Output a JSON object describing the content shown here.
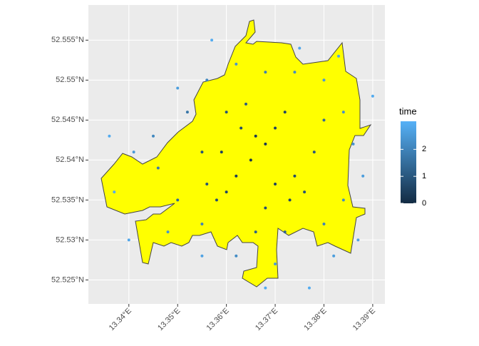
{
  "chart_data": {
    "type": "scatter",
    "x": [
      13.365,
      13.362,
      13.368,
      13.37,
      13.372,
      13.36,
      13.358,
      13.356,
      13.366,
      13.374,
      13.376,
      13.363,
      13.36,
      13.355,
      13.37,
      13.368,
      13.366,
      13.372,
      13.378,
      13.38,
      13.35,
      13.346,
      13.345,
      13.352,
      13.356,
      13.362,
      13.368,
      13.374,
      13.38,
      13.384,
      13.386,
      13.384,
      13.38,
      13.387,
      13.382,
      13.37,
      13.368,
      13.362,
      13.355,
      13.348,
      13.34,
      13.337,
      13.341,
      13.336,
      13.35,
      13.357,
      13.375,
      13.383,
      13.39,
      13.388,
      13.355,
      13.377,
      13.373,
      13.359,
      13.364
    ],
    "y": [
      52.54,
      52.538,
      52.542,
      52.544,
      52.546,
      52.536,
      52.535,
      52.537,
      52.543,
      52.538,
      52.536,
      52.544,
      52.546,
      52.541,
      52.537,
      52.534,
      52.531,
      52.531,
      52.541,
      52.545,
      52.535,
      52.539,
      52.543,
      52.546,
      52.55,
      52.552,
      52.551,
      52.551,
      52.55,
      52.546,
      52.542,
      52.535,
      52.532,
      52.53,
      52.528,
      52.527,
      52.524,
      52.528,
      52.532,
      52.531,
      52.53,
      52.536,
      52.541,
      52.543,
      52.549,
      52.555,
      52.554,
      52.553,
      52.548,
      52.538,
      52.528,
      52.524,
      52.535,
      52.541,
      52.547
    ],
    "series": [
      {
        "name": "time",
        "values": [
          0.2,
          0.4,
          0.3,
          0.5,
          0.6,
          0.6,
          0.8,
          0.9,
          0.3,
          0.7,
          0.9,
          0.7,
          0.9,
          0.9,
          0.5,
          0.8,
          1.2,
          1.3,
          1.0,
          1.4,
          1.4,
          1.8,
          2.1,
          1.7,
          2.1,
          2.4,
          1.9,
          2.2,
          2.5,
          2.3,
          2.4,
          2.2,
          2.0,
          2.7,
          2.6,
          2.5,
          2.9,
          2.2,
          2.0,
          2.4,
          2.8,
          2.9,
          2.5,
          2.9,
          2.6,
          2.9,
          2.8,
          2.8,
          2.9,
          2.6,
          2.7,
          2.9,
          0.6,
          0.5,
          1.1
        ]
      }
    ],
    "xlim": [
      13.3317,
      13.3925
    ],
    "ylim": [
      52.522,
      52.5594
    ],
    "xticks": [
      {
        "value": 13.34,
        "label": "13.34°E"
      },
      {
        "value": 13.35,
        "label": "13.35°E"
      },
      {
        "value": 13.36,
        "label": "13.36°E"
      },
      {
        "value": 13.37,
        "label": "13.37°E"
      },
      {
        "value": 13.38,
        "label": "13.38°E"
      },
      {
        "value": 13.39,
        "label": "13.39°E"
      }
    ],
    "yticks": [
      {
        "value": 52.525,
        "label": "52.525°N"
      },
      {
        "value": 52.53,
        "label": "52.53°N"
      },
      {
        "value": 52.535,
        "label": "52.535°N"
      },
      {
        "value": 52.54,
        "label": "52.54°N"
      },
      {
        "value": 52.545,
        "label": "52.545°N"
      },
      {
        "value": 52.55,
        "label": "52.55°N"
      },
      {
        "value": 52.555,
        "label": "52.555°N"
      }
    ],
    "legend_title": "time",
    "color_low": "#132B43",
    "color_high": "#56B1F7",
    "colorbar_lim": [
      0,
      3.04
    ],
    "colorbar_ticks": [
      0,
      1,
      2
    ],
    "grid": true
  }
}
